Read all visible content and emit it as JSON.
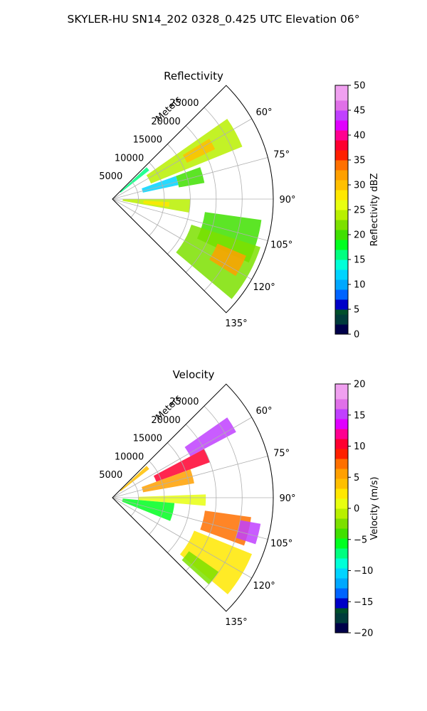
{
  "figure": {
    "title": "SKYLER-HU  SN14_202  0328_0.425 UTC Elevation 06°"
  },
  "chart_data": [
    {
      "type": "heatmap",
      "projection": "polar-sector",
      "title": "Reflectivity",
      "radial_label": "Meters",
      "radial_ticks": [
        5000,
        10000,
        15000,
        20000,
        25000
      ],
      "radial_tick_labels": [
        "5000",
        "10000",
        "15000",
        "20000",
        "25000"
      ],
      "rmax": 31000,
      "azimuth_ticks": [
        60,
        75,
        90,
        105,
        120,
        135
      ],
      "azimuth_tick_labels": [
        "60°",
        "75°",
        "90°",
        "105°",
        "120°",
        "135°"
      ],
      "azimuth_range": [
        45,
        135
      ],
      "grid": true,
      "colorbar": {
        "label": "Reflectivity dBZ",
        "range": [
          0,
          50
        ],
        "ticks": [
          0,
          5,
          10,
          15,
          20,
          25,
          30,
          35,
          40,
          45,
          50
        ],
        "tick_labels": [
          "0",
          "5",
          "10",
          "15",
          "20",
          "25",
          "30",
          "35",
          "40",
          "45",
          "50"
        ]
      },
      "echo_regions": [
        {
          "az": [
            47,
            52
          ],
          "r": [
            2000,
            9000
          ],
          "value": 15
        },
        {
          "az": [
            55,
            68
          ],
          "r": [
            8000,
            27000
          ],
          "value": 23
        },
        {
          "az": [
            58,
            64
          ],
          "r": [
            16000,
            22000
          ],
          "value": 30
        },
        {
          "az": [
            70,
            80
          ],
          "r": [
            13000,
            18000
          ],
          "value": 20
        },
        {
          "az": [
            70,
            78
          ],
          "r": [
            6000,
            13000
          ],
          "value": 12
        },
        {
          "az": [
            90,
            100
          ],
          "r": [
            2000,
            15000
          ],
          "value": 23
        },
        {
          "az": [
            93,
            98
          ],
          "r": [
            6000,
            11000
          ],
          "value": 28
        },
        {
          "az": [
            98,
            115
          ],
          "r": [
            18000,
            29000
          ],
          "value": 20
        },
        {
          "az": [
            108,
            130
          ],
          "r": [
            16000,
            30000
          ],
          "value": 22
        },
        {
          "az": [
            113,
            122
          ],
          "r": [
            22000,
            28000
          ],
          "value": 32
        }
      ]
    },
    {
      "type": "heatmap",
      "projection": "polar-sector",
      "title": "Velocity",
      "radial_label": "Meters",
      "radial_ticks": [
        5000,
        10000,
        15000,
        20000,
        25000
      ],
      "radial_tick_labels": [
        "5000",
        "10000",
        "15000",
        "20000",
        "25000"
      ],
      "rmax": 31000,
      "azimuth_ticks": [
        60,
        75,
        90,
        105,
        120,
        135
      ],
      "azimuth_tick_labels": [
        "60°",
        "75°",
        "90°",
        "105°",
        "120°",
        "135°"
      ],
      "azimuth_range": [
        45,
        135
      ],
      "grid": true,
      "colorbar": {
        "label": "Velocity (m/s)",
        "range": [
          -20,
          20
        ],
        "ticks": [
          -20,
          -15,
          -10,
          -5,
          0,
          5,
          10,
          15,
          20
        ],
        "tick_labels": [
          "−20",
          "−15",
          "−10",
          "−5",
          "0",
          "5",
          "10",
          "15",
          "20"
        ]
      },
      "echo_regions": [
        {
          "az": [
            47,
            52
          ],
          "r": [
            2000,
            9000
          ],
          "value": 4
        },
        {
          "az": [
            55,
            62
          ],
          "r": [
            17000,
            27000
          ],
          "value": 15
        },
        {
          "az": [
            62,
            70
          ],
          "r": [
            9000,
            20000
          ],
          "value": 11
        },
        {
          "az": [
            70,
            80
          ],
          "r": [
            6000,
            16000
          ],
          "value": 6
        },
        {
          "az": [
            88,
            95
          ],
          "r": [
            5000,
            18000
          ],
          "value": 0
        },
        {
          "az": [
            95,
            112
          ],
          "r": [
            2000,
            12000
          ],
          "value": -6
        },
        {
          "az": [
            98,
            110
          ],
          "r": [
            18000,
            27000
          ],
          "value": 7
        },
        {
          "az": [
            100,
            108
          ],
          "r": [
            25000,
            29000
          ],
          "value": 15
        },
        {
          "az": [
            112,
            130
          ],
          "r": [
            17000,
            29000
          ],
          "value": 2
        },
        {
          "az": [
            125,
            132
          ],
          "r": [
            18000,
            25000
          ],
          "value": -3
        }
      ]
    }
  ]
}
